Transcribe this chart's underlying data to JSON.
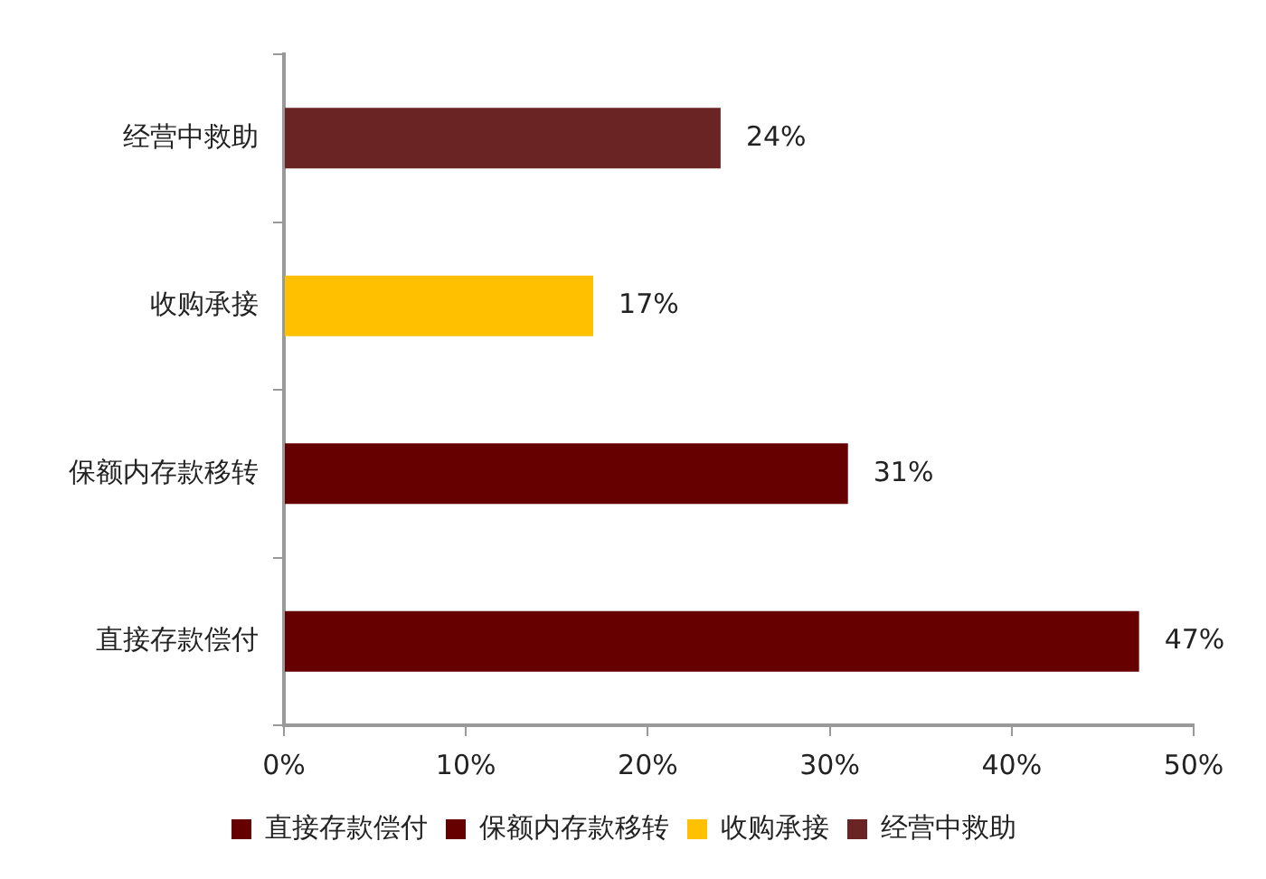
{
  "chart_data": {
    "type": "bar",
    "orientation": "horizontal",
    "categories": [
      "经营中救助",
      "收购承接",
      "保额内存款移转",
      "直接存款偿付"
    ],
    "series": [
      {
        "name": "直接存款偿付",
        "color": "#660000",
        "values": [
          null,
          null,
          null,
          47
        ],
        "value_labels": [
          null,
          null,
          null,
          "47%"
        ]
      },
      {
        "name": "保额内存款移转",
        "color": "#660000",
        "values": [
          null,
          null,
          31,
          null
        ],
        "value_labels": [
          null,
          null,
          "31%",
          null
        ]
      },
      {
        "name": "收购承接",
        "color": "#ffc000",
        "values": [
          null,
          17,
          null,
          null
        ],
        "value_labels": [
          null,
          "17%",
          null,
          null
        ]
      },
      {
        "name": "经营中救助",
        "color": "#6b2424",
        "values": [
          24,
          null,
          null,
          null
        ],
        "value_labels": [
          "24%",
          null,
          null,
          null
        ]
      }
    ],
    "xlim": [
      0,
      50
    ],
    "xticks": [
      {
        "value": 0,
        "label": "0%"
      },
      {
        "value": 10,
        "label": "10%"
      },
      {
        "value": 20,
        "label": "20%"
      },
      {
        "value": 30,
        "label": "30%"
      },
      {
        "value": 40,
        "label": "40%"
      },
      {
        "value": 50,
        "label": "50%"
      }
    ],
    "grid": false,
    "legend": "bottom"
  }
}
